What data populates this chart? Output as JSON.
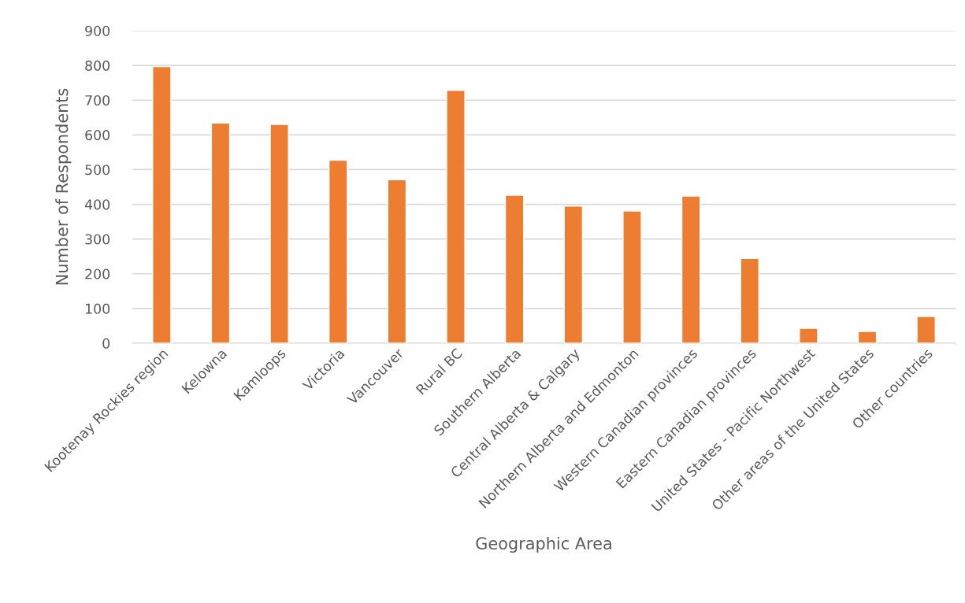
{
  "chart_data": {
    "type": "bar",
    "xlabel": "Geographic Area",
    "ylabel": "Number of Respondents",
    "categories": [
      "Kootenay Rockies region",
      "Kelowna",
      "Kamloops",
      "Victoria",
      "Vancouver",
      "Rural BC",
      "Southern Alberta",
      "Central Alberta & Calgary",
      "Northern Alberta and Edmonton",
      "Western Canadian provinces",
      "Eastern Canadian provinces",
      "United States - Pacific Northwest",
      "Other areas of the United States",
      "Other countries"
    ],
    "values": [
      797,
      634,
      630,
      527,
      471,
      728,
      426,
      395,
      381,
      424,
      244,
      43,
      34,
      77
    ],
    "color": "#ed7d31",
    "ylim": [
      0,
      900
    ],
    "yticks": [
      0,
      100,
      200,
      300,
      400,
      500,
      600,
      700,
      800,
      900
    ],
    "grid": "y"
  }
}
